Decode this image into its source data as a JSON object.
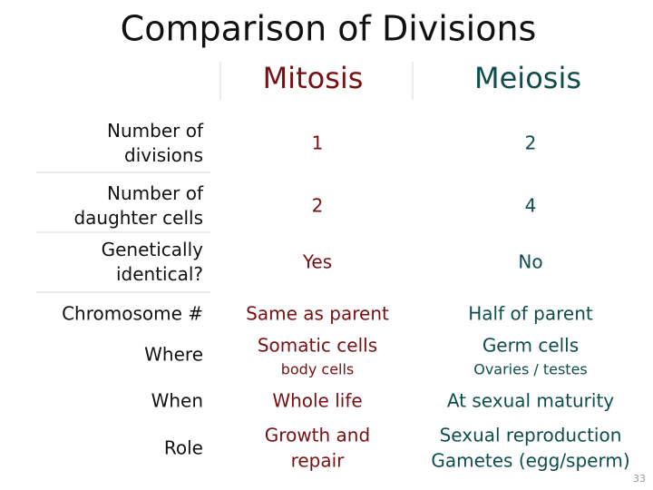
{
  "title": "Comparison of Divisions",
  "columns": [
    "Mitosis",
    "Meiosis"
  ],
  "rows": [
    {
      "label": [
        "Number of",
        "divisions"
      ],
      "cells": [
        {
          "lines": [
            "1"
          ]
        },
        {
          "lines": [
            "2"
          ]
        }
      ]
    },
    {
      "label": [
        "Number of",
        "daughter cells"
      ],
      "cells": [
        {
          "lines": [
            "2"
          ]
        },
        {
          "lines": [
            "4"
          ]
        }
      ]
    },
    {
      "label": [
        "Genetically",
        "identical?"
      ],
      "cells": [
        {
          "lines": [
            "Yes"
          ]
        },
        {
          "lines": [
            "No"
          ]
        }
      ]
    },
    {
      "label": [
        "Chromosome #"
      ],
      "cells": [
        {
          "lines": [
            "Same as parent"
          ]
        },
        {
          "lines": [
            "Half of parent"
          ]
        }
      ]
    },
    {
      "label": [
        "Where"
      ],
      "cells": [
        {
          "lines": [
            "Somatic cells"
          ],
          "note": "body cells"
        },
        {
          "lines": [
            "Germ cells"
          ],
          "note": "Ovaries / testes"
        }
      ]
    },
    {
      "label": [
        "When"
      ],
      "cells": [
        {
          "lines": [
            "Whole life"
          ]
        },
        {
          "lines": [
            "At sexual maturity"
          ]
        }
      ]
    },
    {
      "label": [
        "Role"
      ],
      "cells": [
        {
          "lines": [
            "Growth and",
            "repair"
          ]
        },
        {
          "lines": [
            "Sexual reproduction",
            "Gametes (egg/sperm)"
          ]
        }
      ]
    }
  ],
  "page_number": "33"
}
